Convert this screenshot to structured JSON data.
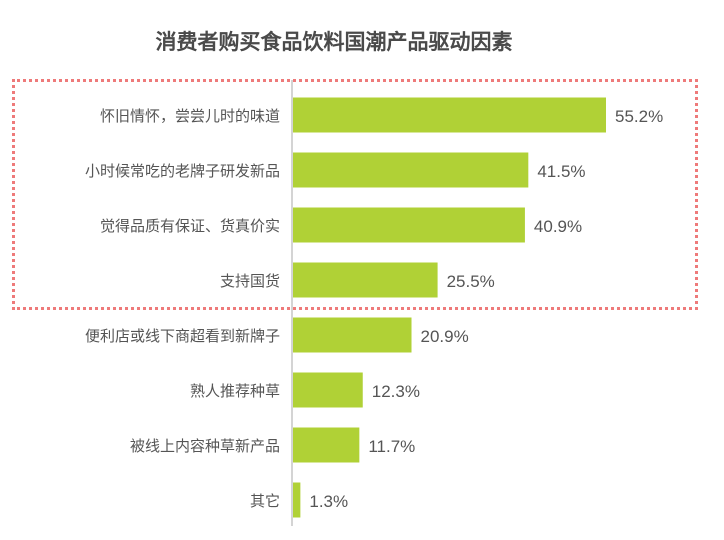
{
  "chart_data": {
    "type": "bar",
    "orientation": "horizontal",
    "title": "消费者购买食品饮料国潮产品驱动因素",
    "categories": [
      "怀旧情怀，尝尝儿时的味道",
      "小时候常吃的老牌子研发新品",
      "觉得品质有保证、货真价实",
      "支持国货",
      "便利店或线下商超看到新牌子",
      "熟人推荐种草",
      "被线上内容种草新产品",
      "其它"
    ],
    "values": [
      55.2,
      41.5,
      40.9,
      25.5,
      20.9,
      12.3,
      11.7,
      1.3
    ],
    "value_labels": [
      "55.2%",
      "41.5%",
      "40.9%",
      "25.5%",
      "20.9%",
      "12.3%",
      "11.7%",
      "1.3%"
    ],
    "highlighted_categories": 4,
    "bar_color": "#b0d136",
    "highlight_color": "#ee7a7a",
    "xlabel": "",
    "ylabel": "",
    "xlim": [
      0,
      60
    ],
    "grid": false
  }
}
